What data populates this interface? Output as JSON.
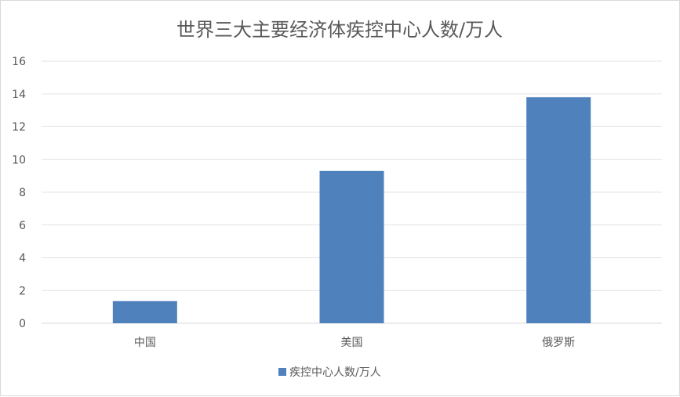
{
  "chart_data": {
    "type": "bar",
    "title": "世界三大主要经济体疾控中心人数/万人",
    "xlabel": "",
    "ylabel": "",
    "categories": [
      "中国",
      "美国",
      "俄罗斯"
    ],
    "series": [
      {
        "name": "疾控中心人数/万人",
        "values": [
          1.35,
          9.3,
          13.8
        ],
        "color": "#4f81bd"
      }
    ],
    "yticks": [
      "0",
      "2",
      "4",
      "6",
      "8",
      "10",
      "12",
      "14",
      "16"
    ],
    "ylim": [
      0,
      16
    ],
    "grid": true,
    "legend_position": "bottom"
  }
}
